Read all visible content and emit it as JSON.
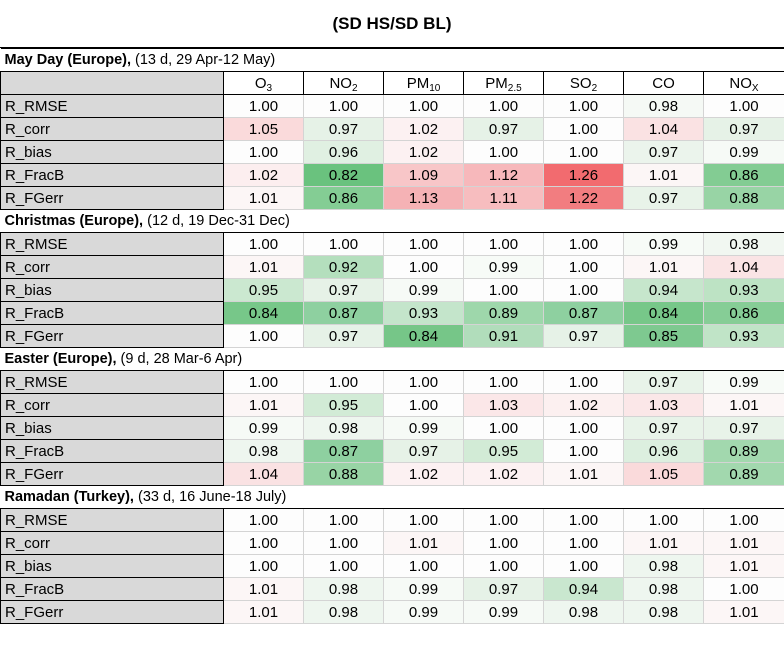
{
  "title": "(SD HS/SD BL)",
  "columns": [
    {
      "base": "O",
      "sub": "3"
    },
    {
      "base": "NO",
      "sub": "2"
    },
    {
      "base": "PM",
      "sub": "10"
    },
    {
      "base": "PM",
      "sub": "2.5"
    },
    {
      "base": "SO",
      "sub": "2"
    },
    {
      "base": "CO",
      "sub": ""
    },
    {
      "base": "NO",
      "sub": "X"
    }
  ],
  "sections": [
    {
      "name": "May Day (Europe),",
      "detail": " (13 d, 29 Apr-12 May)",
      "rows": [
        {
          "label": "R_RMSE",
          "values": [
            "1.00",
            "1.00",
            "1.00",
            "1.00",
            "1.00",
            "0.98",
            "1.00"
          ],
          "colors": [
            "#fdfdfd",
            "#fdfdfd",
            "#fdfdfd",
            "#fdfdfd",
            "#fdfdfd",
            "#f5f9f5",
            "#fdfdfd"
          ]
        },
        {
          "label": "R_corr",
          "values": [
            "1.05",
            "0.97",
            "1.02",
            "0.97",
            "1.00",
            "1.04",
            "0.97"
          ],
          "colors": [
            "#fadadb",
            "#e6f2e7",
            "#fcf1f2",
            "#e6f2e7",
            "#fdfdfd",
            "#fae2e3",
            "#e6f2e7"
          ]
        },
        {
          "label": "R_bias",
          "values": [
            "1.00",
            "0.96",
            "1.02",
            "1.00",
            "1.00",
            "0.97",
            "0.99"
          ],
          "colors": [
            "#fdfdfd",
            "#e0f0e2",
            "#fcf1f2",
            "#fdfdfd",
            "#fdfdfd",
            "#ebf4ec",
            "#f6faf6"
          ]
        },
        {
          "label": "R_FracB",
          "values": [
            "1.02",
            "0.82",
            "1.09",
            "1.12",
            "1.26",
            "1.01",
            "0.86"
          ],
          "colors": [
            "#fceeef",
            "#6ac27e",
            "#f8c6c8",
            "#f7b8bb",
            "#f26b6f",
            "#fcf6f6",
            "#83cc93"
          ]
        },
        {
          "label": "R_FGerr",
          "values": [
            "1.01",
            "0.86",
            "1.13",
            "1.11",
            "1.22",
            "0.97",
            "0.88"
          ],
          "colors": [
            "#fcf6f6",
            "#84cd94",
            "#f5b2b5",
            "#f7bdbf",
            "#f27d80",
            "#e8f3e9",
            "#98d4a5"
          ]
        }
      ]
    },
    {
      "name": "Christmas (Europe),",
      "detail": " (12 d, 19 Dec-31 Dec)",
      "rows": [
        {
          "label": "R_RMSE",
          "values": [
            "1.00",
            "1.00",
            "1.00",
            "1.00",
            "1.00",
            "0.99",
            "0.98"
          ],
          "colors": [
            "#fdfdfd",
            "#fdfdfd",
            "#fdfdfd",
            "#fdfdfd",
            "#fdfdfd",
            "#f7fbf7",
            "#f1f7f1"
          ]
        },
        {
          "label": "R_corr",
          "values": [
            "1.01",
            "0.92",
            "1.00",
            "0.99",
            "1.00",
            "1.01",
            "1.04"
          ],
          "colors": [
            "#fcf6f6",
            "#b4dfbd",
            "#fdfdfd",
            "#f7fbf7",
            "#fdfdfd",
            "#fcf6f6",
            "#fae4e5"
          ]
        },
        {
          "label": "R_bias",
          "values": [
            "0.95",
            "0.97",
            "0.99",
            "1.00",
            "1.00",
            "0.94",
            "0.93"
          ],
          "colors": [
            "#cbe8d0",
            "#e6f2e7",
            "#f6faf6",
            "#fdfdfd",
            "#fdfdfd",
            "#c6e6cc",
            "#bde3c4"
          ]
        },
        {
          "label": "R_FracB",
          "values": [
            "0.84",
            "0.87",
            "0.93",
            "0.89",
            "0.87",
            "0.84",
            "0.86"
          ],
          "colors": [
            "#77c789",
            "#8ed0a0",
            "#c4e5cb",
            "#9ed7ab",
            "#8ed0a0",
            "#77c789",
            "#86cd96"
          ]
        },
        {
          "label": "R_FGerr",
          "values": [
            "1.00",
            "0.97",
            "0.84",
            "0.91",
            "0.97",
            "0.85",
            "0.93"
          ],
          "colors": [
            "#fdfdfd",
            "#e6f2e7",
            "#76c688",
            "#b1ddbb",
            "#e6f2e7",
            "#7ec990",
            "#c0e4c7"
          ]
        }
      ]
    },
    {
      "name": "Easter (Europe),",
      "detail": " (9 d, 28 Mar-6 Apr)",
      "rows": [
        {
          "label": "R_RMSE",
          "values": [
            "1.00",
            "1.00",
            "1.00",
            "1.00",
            "1.00",
            "0.97",
            "0.99"
          ],
          "colors": [
            "#fdfdfd",
            "#fdfdfd",
            "#fdfdfd",
            "#fdfdfd",
            "#fdfdfd",
            "#e8f3e9",
            "#f7fbf7"
          ]
        },
        {
          "label": "R_corr",
          "values": [
            "1.01",
            "0.95",
            "1.00",
            "1.03",
            "1.02",
            "1.03",
            "1.01"
          ],
          "colors": [
            "#fcf6f6",
            "#d2ebd6",
            "#fdfdfd",
            "#fbe7e8",
            "#fcf0f0",
            "#fbe7e8",
            "#fcf6f6"
          ]
        },
        {
          "label": "R_bias",
          "values": [
            "0.99",
            "0.98",
            "0.99",
            "1.00",
            "1.00",
            "0.97",
            "0.97"
          ],
          "colors": [
            "#f6faf6",
            "#eef6ef",
            "#f6faf6",
            "#fdfdfd",
            "#fdfdfd",
            "#e8f3e9",
            "#e8f3e9"
          ]
        },
        {
          "label": "R_FracB",
          "values": [
            "0.98",
            "0.87",
            "0.97",
            "0.95",
            "1.00",
            "0.96",
            "0.89"
          ],
          "colors": [
            "#eef6ef",
            "#8ed0a0",
            "#e6f2e7",
            "#d2ebd6",
            "#fdfdfd",
            "#dcefdf",
            "#a2d8ae"
          ]
        },
        {
          "label": "R_FGerr",
          "values": [
            "1.04",
            "0.88",
            "1.02",
            "1.02",
            "1.01",
            "1.05",
            "0.89"
          ],
          "colors": [
            "#fae2e3",
            "#98d4a5",
            "#fcf1f2",
            "#fcf1f2",
            "#fcf6f6",
            "#fadadb",
            "#a2d8ae"
          ]
        }
      ]
    },
    {
      "name": "Ramadan (Turkey),",
      "detail": " (33 d, 16 June-18 July)",
      "rows": [
        {
          "label": "R_RMSE",
          "values": [
            "1.00",
            "1.00",
            "1.00",
            "1.00",
            "1.00",
            "1.00",
            "1.00"
          ],
          "colors": [
            "#fdfdfd",
            "#fdfdfd",
            "#fdfdfd",
            "#fdfdfd",
            "#fdfdfd",
            "#fdfdfd",
            "#fdfdfd"
          ]
        },
        {
          "label": "R_corr",
          "values": [
            "1.00",
            "1.00",
            "1.01",
            "1.00",
            "1.00",
            "1.01",
            "1.01"
          ],
          "colors": [
            "#fdfdfd",
            "#fdfdfd",
            "#fcf6f6",
            "#fdfdfd",
            "#fdfdfd",
            "#fcf6f6",
            "#fcf6f6"
          ]
        },
        {
          "label": "R_bias",
          "values": [
            "1.00",
            "1.00",
            "1.00",
            "1.00",
            "1.00",
            "0.98",
            "1.01"
          ],
          "colors": [
            "#fdfdfd",
            "#fdfdfd",
            "#fdfdfd",
            "#fdfdfd",
            "#fdfdfd",
            "#eef6ef",
            "#fcf6f6"
          ]
        },
        {
          "label": "R_FracB",
          "values": [
            "1.01",
            "0.98",
            "0.99",
            "0.97",
            "0.94",
            "0.98",
            "1.00"
          ],
          "colors": [
            "#fcf6f6",
            "#eef6ef",
            "#f6faf6",
            "#e6f2e7",
            "#c9e7cf",
            "#eef6ef",
            "#fdfdfd"
          ]
        },
        {
          "label": "R_FGerr",
          "values": [
            "1.01",
            "0.98",
            "0.99",
            "0.99",
            "0.98",
            "0.98",
            "1.01"
          ],
          "colors": [
            "#fcf6f6",
            "#eef6ef",
            "#f6faf6",
            "#f6faf6",
            "#eef6ef",
            "#eef6ef",
            "#fcf6f6"
          ]
        }
      ]
    }
  ]
}
